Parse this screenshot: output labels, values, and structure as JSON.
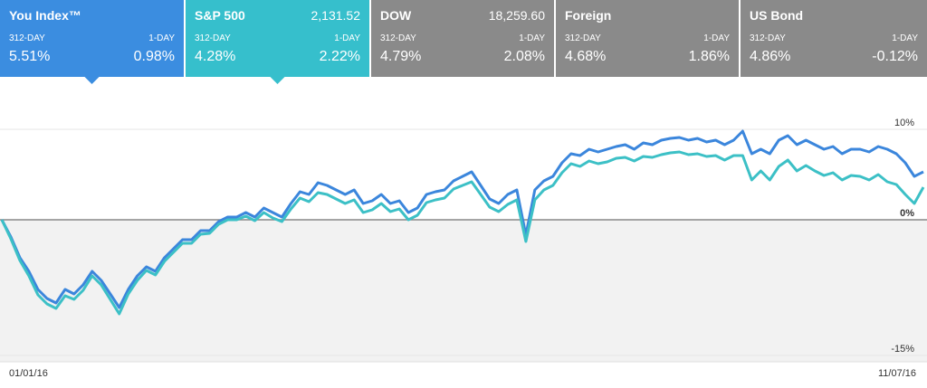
{
  "tabs": [
    {
      "name": "You Index™",
      "label_long": "312-DAY",
      "label_short": "1-DAY",
      "value_long": "5.51%",
      "value_short": "0.98%"
    },
    {
      "name": "S&P 500",
      "price": "2,131.52",
      "label_long": "312-DAY",
      "label_short": "1-DAY",
      "value_long": "4.28%",
      "value_short": "2.22%"
    },
    {
      "name": "DOW",
      "price": "18,259.60",
      "label_long": "312-DAY",
      "label_short": "1-DAY",
      "value_long": "4.79%",
      "value_short": "2.08%"
    },
    {
      "name": "Foreign",
      "label_long": "312-DAY",
      "label_short": "1-DAY",
      "value_long": "4.68%",
      "value_short": "1.86%"
    },
    {
      "name": "US Bond",
      "label_long": "312-DAY",
      "label_short": "1-DAY",
      "value_long": "4.86%",
      "value_short": "-0.12%"
    }
  ],
  "chart_data": {
    "type": "line",
    "categories": [
      "01/01/16",
      null,
      null,
      null,
      null,
      null,
      null,
      null,
      null,
      null,
      null,
      null,
      null,
      null,
      null,
      null,
      null,
      null,
      null,
      null,
      null,
      null,
      null,
      null,
      null,
      null,
      null,
      null,
      null,
      null,
      null,
      null,
      null,
      null,
      null,
      null,
      null,
      null,
      null,
      null,
      null,
      null,
      null,
      null,
      null,
      null,
      null,
      null,
      null,
      null,
      null,
      null,
      null,
      null,
      null,
      null,
      null,
      null,
      null,
      null,
      null,
      null,
      null,
      null,
      null,
      null,
      null,
      null,
      null,
      null,
      null,
      null,
      null,
      null,
      null,
      null,
      null,
      null,
      null,
      null,
      null,
      null,
      null,
      null,
      null,
      null,
      null,
      null,
      null,
      null,
      null,
      null,
      null,
      null,
      null,
      null,
      null,
      null,
      null,
      null,
      null,
      null,
      "11/07/16"
    ],
    "series": [
      {
        "name": "You Index™",
        "color": "#3b86dc",
        "values": [
          0,
          -1.9,
          -4.2,
          -5.7,
          -7.7,
          -8.7,
          -9.2,
          -7.7,
          -8.2,
          -7.2,
          -5.7,
          -6.7,
          -8.2,
          -9.7,
          -7.7,
          -6.2,
          -5.2,
          -5.7,
          -4.2,
          -3.2,
          -2.2,
          -2.2,
          -1.2,
          -1.2,
          -0.2,
          0.3,
          0.3,
          0.8,
          0.3,
          1.3,
          0.8,
          0.3,
          1.8,
          3.1,
          2.8,
          4.1,
          3.8,
          3.3,
          2.8,
          3.3,
          1.8,
          2.1,
          2.8,
          1.8,
          2.1,
          0.8,
          1.3,
          2.8,
          3.1,
          3.3,
          4.3,
          4.8,
          5.3,
          3.8,
          2.3,
          1.8,
          2.8,
          3.3,
          -1.7,
          3.3,
          4.3,
          4.8,
          6.3,
          7.3,
          7.1,
          7.8,
          7.5,
          7.8,
          8.1,
          8.3,
          7.8,
          8.5,
          8.3,
          8.8,
          9.0,
          9.1,
          8.8,
          9.0,
          8.6,
          8.8,
          8.3,
          8.8,
          9.8,
          7.3,
          7.8,
          7.3,
          8.8,
          9.3,
          8.3,
          8.8,
          8.3,
          7.8,
          8.1,
          7.3,
          7.8,
          7.8,
          7.5,
          8.1,
          7.8,
          7.3,
          6.3,
          4.8,
          5.3
        ]
      },
      {
        "name": "S&P 500",
        "color": "#3cc0c6",
        "values": [
          0,
          -2.1,
          -4.5,
          -6.2,
          -8.3,
          -9.3,
          -9.8,
          -8.4,
          -8.8,
          -7.8,
          -6.2,
          -7.2,
          -8.8,
          -10.4,
          -8.2,
          -6.7,
          -5.6,
          -6.1,
          -4.6,
          -3.6,
          -2.6,
          -2.6,
          -1.6,
          -1.5,
          -0.5,
          0.0,
          0.0,
          0.4,
          -0.1,
          0.8,
          0.2,
          -0.2,
          1.2,
          2.4,
          2.0,
          3.0,
          2.8,
          2.3,
          1.8,
          2.2,
          0.8,
          1.1,
          1.8,
          0.9,
          1.2,
          0.0,
          0.5,
          1.9,
          2.2,
          2.4,
          3.4,
          3.8,
          4.2,
          2.8,
          1.4,
          0.9,
          1.7,
          2.2,
          -2.4,
          2.2,
          3.3,
          3.8,
          5.2,
          6.2,
          5.9,
          6.5,
          6.2,
          6.4,
          6.8,
          6.9,
          6.5,
          7.0,
          6.9,
          7.2,
          7.4,
          7.5,
          7.2,
          7.3,
          7.0,
          7.1,
          6.6,
          7.1,
          7.1,
          4.4,
          5.4,
          4.4,
          5.9,
          6.6,
          5.4,
          6.0,
          5.4,
          4.9,
          5.2,
          4.4,
          4.9,
          4.8,
          4.4,
          5.0,
          4.2,
          3.9,
          2.8,
          1.8,
          3.6
        ]
      }
    ],
    "ylim": [
      -15,
      10
    ],
    "yticks": [
      {
        "value": 10,
        "label": "10%"
      },
      {
        "value": 0,
        "label": "0%"
      },
      {
        "value": -15,
        "label": "-15%"
      }
    ]
  }
}
